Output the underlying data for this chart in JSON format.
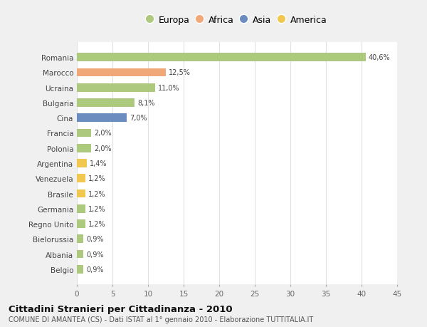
{
  "countries": [
    "Romania",
    "Marocco",
    "Ucraina",
    "Bulgaria",
    "Cina",
    "Francia",
    "Polonia",
    "Argentina",
    "Venezuela",
    "Brasile",
    "Germania",
    "Regno Unito",
    "Bielorussia",
    "Albania",
    "Belgio"
  ],
  "values": [
    40.6,
    12.5,
    11.0,
    8.1,
    7.0,
    2.0,
    2.0,
    1.4,
    1.2,
    1.2,
    1.2,
    1.2,
    0.9,
    0.9,
    0.9
  ],
  "labels": [
    "40,6%",
    "12,5%",
    "11,0%",
    "8,1%",
    "7,0%",
    "2,0%",
    "2,0%",
    "1,4%",
    "1,2%",
    "1,2%",
    "1,2%",
    "1,2%",
    "0,9%",
    "0,9%",
    "0,9%"
  ],
  "colors": [
    "#adc97e",
    "#f0a878",
    "#adc97e",
    "#adc97e",
    "#6b8cbf",
    "#adc97e",
    "#adc97e",
    "#f0c850",
    "#f0c850",
    "#f0c850",
    "#adc97e",
    "#adc97e",
    "#adc97e",
    "#adc97e",
    "#adc97e"
  ],
  "legend_labels": [
    "Europa",
    "Africa",
    "Asia",
    "America"
  ],
  "legend_colors": [
    "#adc97e",
    "#f0a878",
    "#6b8cbf",
    "#f0c850"
  ],
  "title": "Cittadini Stranieri per Cittadinanza - 2010",
  "subtitle": "COMUNE DI AMANTEA (CS) - Dati ISTAT al 1° gennaio 2010 - Elaborazione TUTTITALIA.IT",
  "xlim": [
    0,
    45
  ],
  "xticks": [
    0,
    5,
    10,
    15,
    20,
    25,
    30,
    35,
    40,
    45
  ],
  "background_color": "#f0f0f0",
  "plot_background_color": "#ffffff",
  "grid_color": "#e0e0e0"
}
